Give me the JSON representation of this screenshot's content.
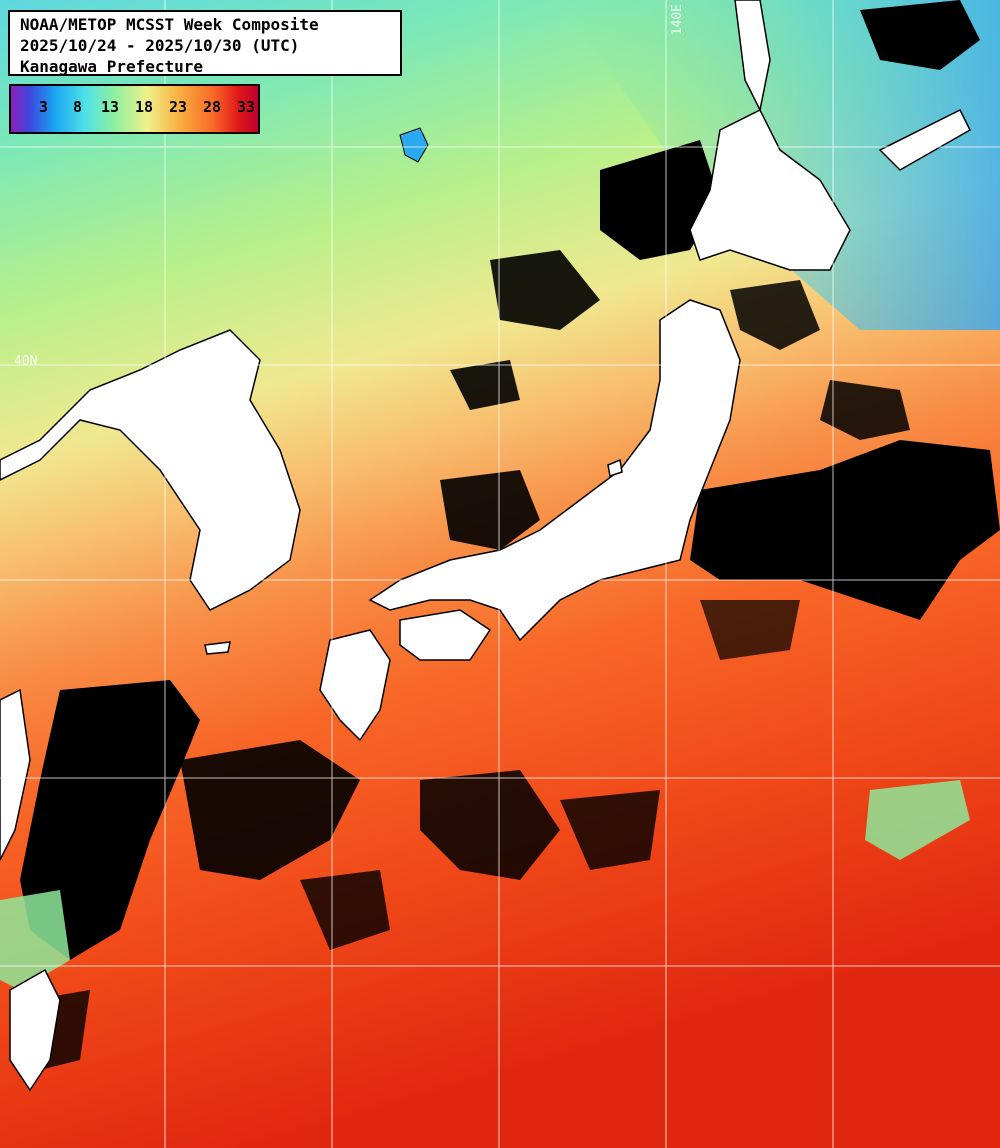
{
  "title": {
    "line1": "NOAA/METOP MCSST Week Composite",
    "line2": "2025/10/24 - 2025/10/30 (UTC)",
    "line3": "Kanagawa Prefecture"
  },
  "color_scale": {
    "ticks": [
      "3",
      "8",
      "13",
      "18",
      "23",
      "28",
      "33"
    ],
    "colors": [
      "#8a20b8",
      "#1aa8f0",
      "#8ef0a0",
      "#f0f08a",
      "#f8b040",
      "#f86828",
      "#c00030"
    ]
  },
  "grid_labels": {
    "lon": "140E",
    "lat": "40N"
  },
  "colors": {
    "land": "#ffffff",
    "cloud": "#000000",
    "grid": "#ffffff"
  }
}
